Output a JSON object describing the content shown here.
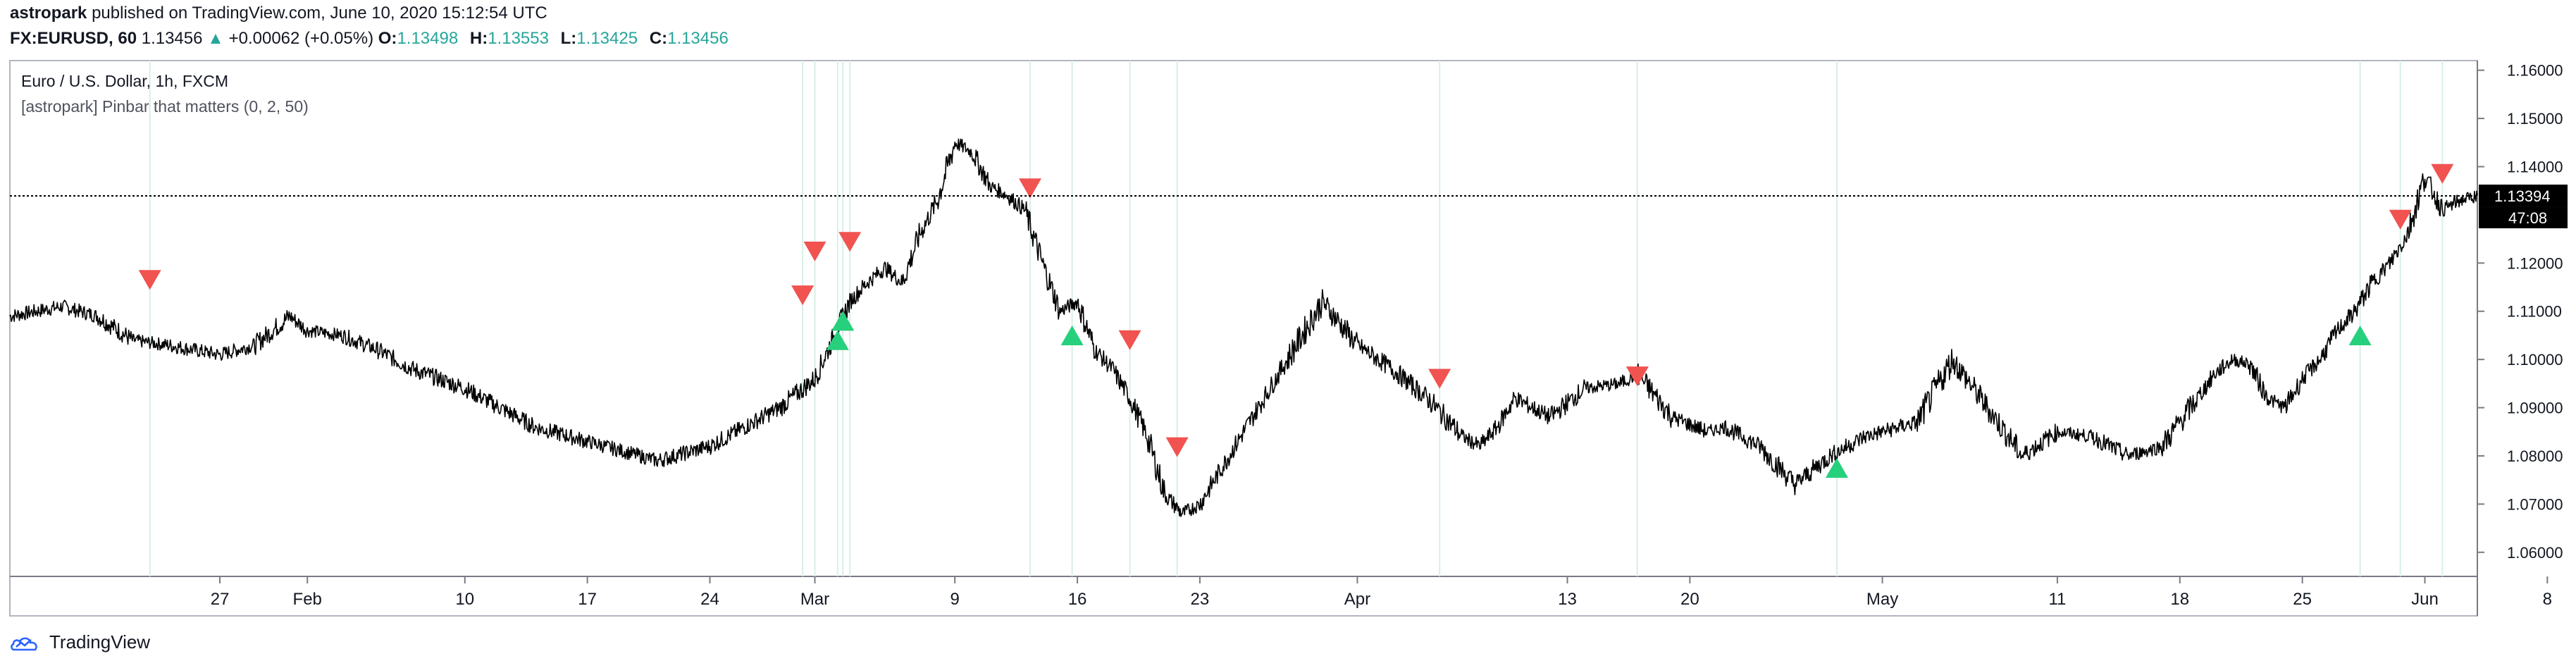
{
  "header": {
    "publisher": "astropark",
    "published_text": "published on TradingView.com, June 10, 2020 15:12:54 UTC",
    "symbol": "FX:EURUSD, 60",
    "last": "1.13456",
    "change": "+0.00062 (+0.05%)",
    "o_label": "O:",
    "o": "1.13498",
    "h_label": "H:",
    "h": "1.13553",
    "l_label": "L:",
    "l": "1.13425",
    "c_label": "C:",
    "c": "1.13456"
  },
  "legend": {
    "series": "Euro / U.S. Dollar, 1h, FXCM",
    "indicator": "[astropark] Pinbar that matters (0, 2, 50)"
  },
  "footer": {
    "brand": "TradingView"
  },
  "price_label": "1.13394",
  "countdown_label": "47:08",
  "colors": {
    "up": "#26a69a",
    "bear_signal": "#f05350",
    "bull_signal": "#26d07c",
    "line": "#000000"
  },
  "chart_data": {
    "type": "line",
    "title": "Euro / U.S. Dollar, 1h, FXCM",
    "x_ticks": [
      "27",
      "Feb",
      "10",
      "17",
      "24",
      "Mar",
      "9",
      "16",
      "23",
      "Apr",
      "13",
      "20",
      "May",
      "11",
      "18",
      "25",
      "Jun",
      "8"
    ],
    "y_ticks": [
      "1.16000",
      "1.15000",
      "1.14000",
      "1.13394",
      "1.12000",
      "1.11000",
      "1.10000",
      "1.09000",
      "1.08000",
      "1.07000",
      "1.06000"
    ],
    "ylim": [
      1.055,
      1.162
    ],
    "x_range_days": [
      -5,
      136
    ],
    "x_axis_ref": "Jan 20, 2020 = day 0",
    "grid": false,
    "current_price": 1.13394,
    "series": [
      {
        "x": [
          -5,
          -2,
          0,
          2,
          4,
          7,
          9,
          11,
          12,
          14,
          16,
          18,
          21,
          23,
          25,
          28,
          30,
          32,
          35,
          37,
          39,
          41,
          42,
          43,
          44,
          45,
          46,
          47,
          48,
          49,
          50,
          51,
          52,
          53,
          54,
          55,
          56,
          57,
          58,
          59,
          60,
          61,
          62,
          63,
          64,
          65,
          66,
          67,
          68,
          70,
          72,
          74,
          76,
          78,
          79,
          80,
          81,
          83,
          85,
          87,
          88,
          90,
          92,
          93,
          95,
          97,
          99,
          101,
          104,
          106,
          108,
          110,
          112,
          114,
          116,
          118,
          120,
          121,
          122,
          123,
          124,
          125,
          126,
          127,
          128,
          129,
          130,
          131,
          132,
          133,
          134,
          135,
          136
        ],
        "y": [
          1.109,
          1.111,
          1.109,
          1.104,
          1.103,
          1.101,
          1.103,
          1.109,
          1.106,
          1.105,
          1.102,
          1.098,
          1.094,
          1.09,
          1.086,
          1.083,
          1.081,
          1.079,
          1.082,
          1.086,
          1.09,
          1.096,
          1.104,
          1.112,
          1.116,
          1.119,
          1.116,
          1.126,
          1.133,
          1.145,
          1.143,
          1.136,
          1.134,
          1.131,
          1.12,
          1.11,
          1.112,
          1.102,
          1.098,
          1.092,
          1.084,
          1.072,
          1.068,
          1.07,
          1.076,
          1.082,
          1.088,
          1.094,
          1.1,
          1.112,
          1.103,
          1.098,
          1.092,
          1.084,
          1.082,
          1.086,
          1.092,
          1.088,
          1.094,
          1.095,
          1.097,
          1.088,
          1.085,
          1.086,
          1.082,
          1.074,
          1.08,
          1.084,
          1.087,
          1.1,
          1.09,
          1.08,
          1.085,
          1.084,
          1.08,
          1.082,
          1.092,
          1.097,
          1.1,
          1.099,
          1.092,
          1.09,
          1.096,
          1.1,
          1.106,
          1.11,
          1.116,
          1.12,
          1.126,
          1.138,
          1.131,
          1.133,
          1.134
        ]
      }
    ],
    "signals": [
      {
        "day": 3,
        "price": 1.1165,
        "dir": "down"
      },
      {
        "day": 40.3,
        "price": 1.1133,
        "dir": "down"
      },
      {
        "day": 41,
        "price": 1.1224,
        "dir": "down"
      },
      {
        "day": 42.3,
        "price": 1.104,
        "dir": "up"
      },
      {
        "day": 42.6,
        "price": 1.108,
        "dir": "up"
      },
      {
        "day": 43,
        "price": 1.1244,
        "dir": "down"
      },
      {
        "day": 53.3,
        "price": 1.1355,
        "dir": "down"
      },
      {
        "day": 55.7,
        "price": 1.105,
        "dir": "up"
      },
      {
        "day": 59,
        "price": 1.104,
        "dir": "down"
      },
      {
        "day": 61.7,
        "price": 1.0818,
        "dir": "down"
      },
      {
        "day": 76.7,
        "price": 1.096,
        "dir": "down"
      },
      {
        "day": 88,
        "price": 1.0965,
        "dir": "down"
      },
      {
        "day": 99.4,
        "price": 1.0775,
        "dir": "up"
      },
      {
        "day": 129.3,
        "price": 1.105,
        "dir": "up"
      },
      {
        "day": 131.6,
        "price": 1.129,
        "dir": "down"
      },
      {
        "day": 134,
        "price": 1.1385,
        "dir": "down"
      }
    ]
  }
}
